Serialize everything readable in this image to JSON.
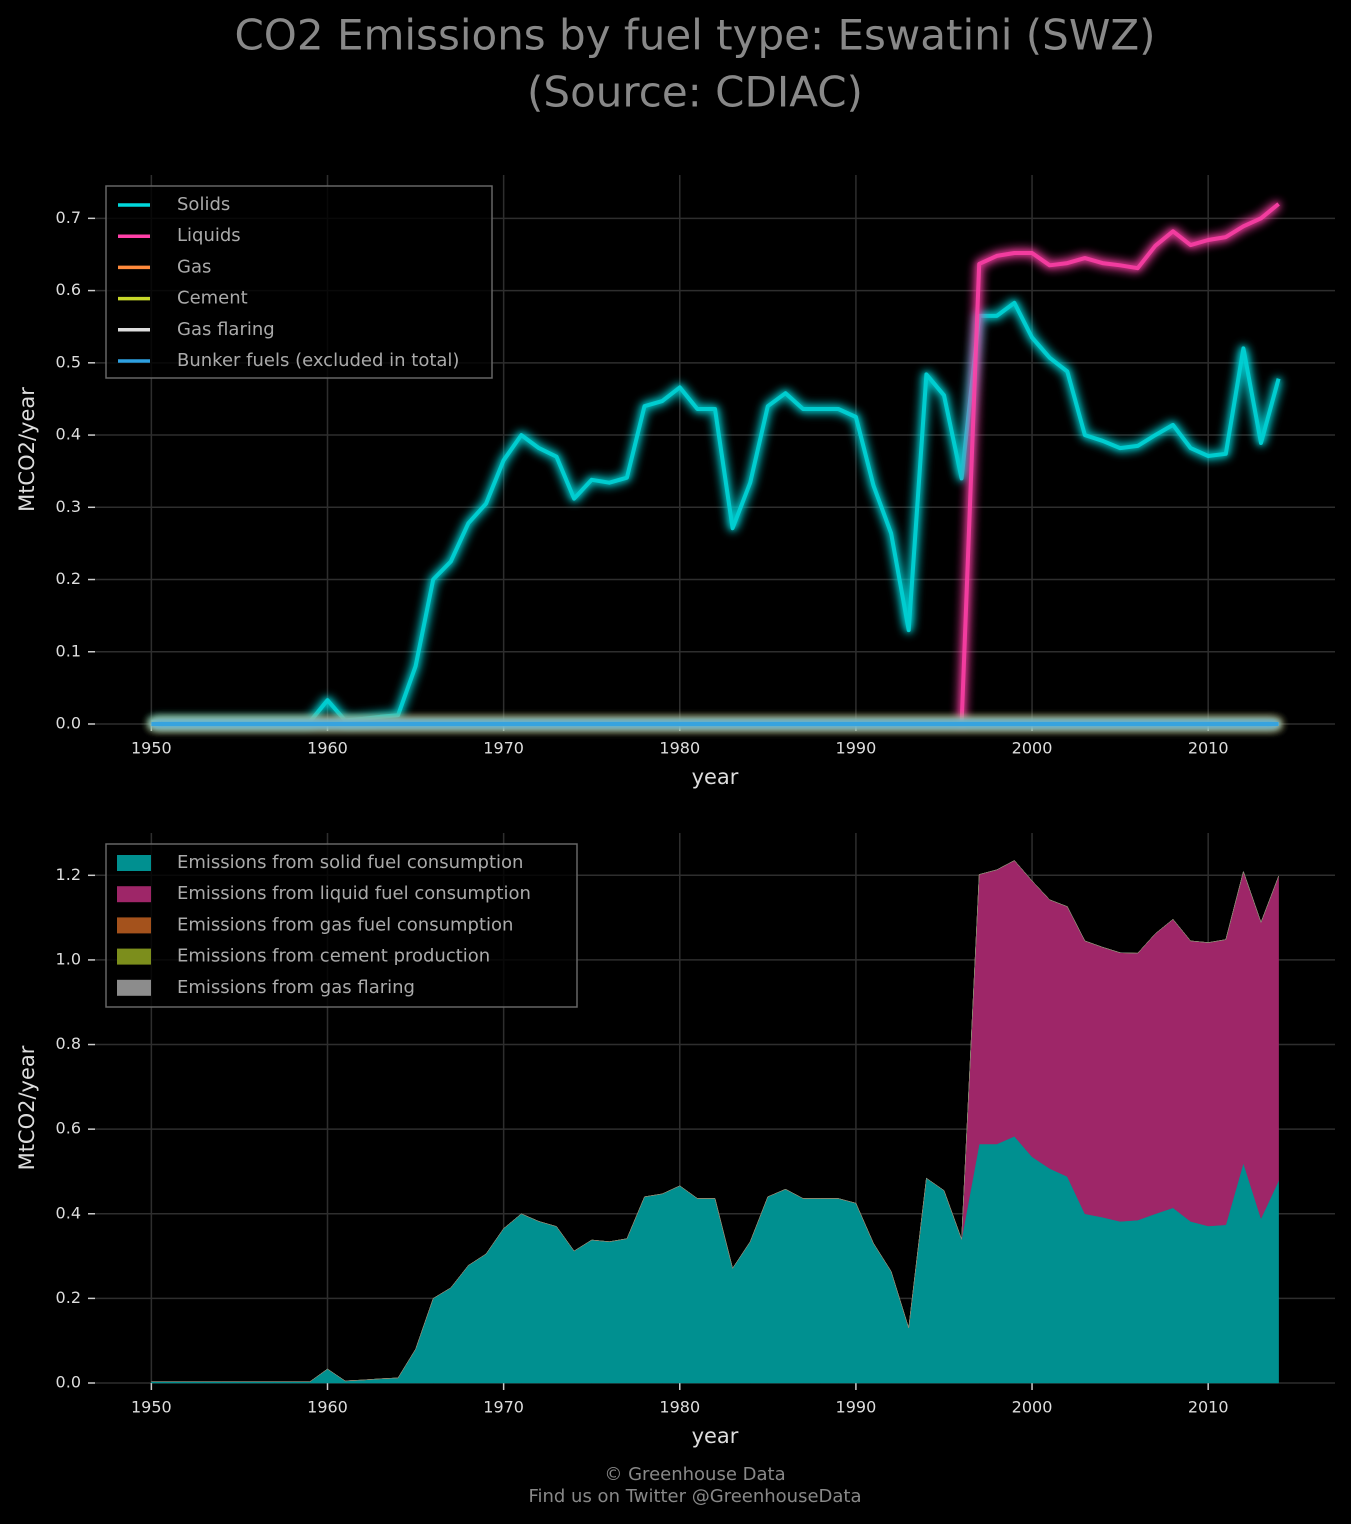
{
  "title": "CO2 Emissions by fuel type: Eswatini (SWZ)",
  "subtitle": "(Source: CDIAC)",
  "footer": [
    "© Greenhouse Data",
    "Find us on Twitter @GreenhouseData"
  ],
  "chart_data": [
    {
      "type": "line",
      "xlabel": "year",
      "ylabel": "MtCO2/year",
      "grid": true,
      "legend": "upper left",
      "x": [
        1950,
        1951,
        1952,
        1953,
        1954,
        1955,
        1956,
        1957,
        1958,
        1959,
        1960,
        1961,
        1962,
        1963,
        1964,
        1965,
        1966,
        1967,
        1968,
        1969,
        1970,
        1971,
        1972,
        1973,
        1974,
        1975,
        1976,
        1977,
        1978,
        1979,
        1980,
        1981,
        1982,
        1983,
        1984,
        1985,
        1986,
        1987,
        1988,
        1989,
        1990,
        1991,
        1992,
        1993,
        1994,
        1995,
        1996,
        1997,
        1998,
        1999,
        2000,
        2001,
        2002,
        2003,
        2004,
        2005,
        2006,
        2007,
        2008,
        2009,
        2010,
        2011,
        2012,
        2013,
        2014
      ],
      "xlim": [
        1946.8,
        2017.2
      ],
      "xticks": [
        1950,
        1960,
        1970,
        1980,
        1990,
        2000,
        2010
      ],
      "ylim": [
        0,
        0.76
      ],
      "yticks": [
        {
          "value": 0,
          "label": "0.0"
        },
        0.1,
        0.2,
        0.3,
        0.4,
        0.5,
        0.6,
        0.7
      ],
      "series": [
        {
          "name": "Solids",
          "color": "#00d8dc",
          "values": [
            0.003,
            0.003,
            0.003,
            0.003,
            0.003,
            0.003,
            0.003,
            0.003,
            0.003,
            0.003,
            0.033,
            0.005,
            0.007,
            0.01,
            0.012,
            0.08,
            0.2,
            0.225,
            0.278,
            0.305,
            0.365,
            0.4,
            0.382,
            0.37,
            0.312,
            0.338,
            0.334,
            0.341,
            0.44,
            0.447,
            0.466,
            0.436,
            0.436,
            0.271,
            0.334,
            0.44,
            0.458,
            0.436,
            0.436,
            0.436,
            0.425,
            0.33,
            0.264,
            0.13,
            0.484,
            0.455,
            0.34,
            0.565,
            0.565,
            0.583,
            0.535,
            0.507,
            0.488,
            0.4,
            0.392,
            0.382,
            0.385,
            0.4,
            0.414,
            0.382,
            0.371,
            0.374,
            0.52,
            0.389,
            0.478
          ]
        },
        {
          "name": "Liquids",
          "color": "#ff40a8",
          "values": [
            null,
            null,
            null,
            null,
            null,
            null,
            null,
            null,
            null,
            null,
            null,
            null,
            null,
            null,
            null,
            null,
            null,
            null,
            null,
            null,
            null,
            null,
            null,
            null,
            null,
            null,
            null,
            null,
            null,
            null,
            null,
            null,
            null,
            null,
            null,
            null,
            null,
            null,
            null,
            null,
            null,
            null,
            null,
            null,
            null,
            null,
            0,
            0.637,
            0.648,
            0.652,
            0.652,
            0.635,
            0.638,
            0.645,
            0.638,
            0.635,
            0.631,
            0.662,
            0.682,
            0.663,
            0.67,
            0.674,
            0.689,
            0.7,
            0.72
          ]
        },
        {
          "name": "Gas",
          "color": "#ff8a3c",
          "values": [
            0,
            0,
            0,
            0,
            0,
            0,
            0,
            0,
            0,
            0,
            0,
            0,
            0,
            0,
            0,
            0,
            0,
            0,
            0,
            0,
            0,
            0,
            0,
            0,
            0,
            0,
            0,
            0,
            0,
            0,
            0,
            0,
            0,
            0,
            0,
            0,
            0,
            0,
            0,
            0,
            0,
            0,
            0,
            0,
            0,
            0,
            0,
            0,
            0,
            0,
            0,
            0,
            0,
            0,
            0,
            0,
            0,
            0,
            0,
            0,
            0,
            0,
            0,
            0,
            0
          ]
        },
        {
          "name": "Cement",
          "color": "#c8d82a",
          "values": [
            0,
            0,
            0,
            0,
            0,
            0,
            0,
            0,
            0,
            0,
            0,
            0,
            0,
            0,
            0,
            0,
            0,
            0,
            0,
            0,
            0,
            0,
            0,
            0,
            0,
            0,
            0,
            0,
            0,
            0,
            0,
            0,
            0,
            0,
            0,
            0,
            0,
            0,
            0,
            0,
            0,
            0,
            0,
            0,
            0,
            0,
            0,
            0,
            0,
            0,
            0,
            0,
            0,
            0,
            0,
            0,
            0,
            0,
            0,
            0,
            0,
            0,
            0,
            0,
            0
          ]
        },
        {
          "name": "Gas flaring",
          "color": "#dddddd",
          "values": [
            0,
            0,
            0,
            0,
            0,
            0,
            0,
            0,
            0,
            0,
            0,
            0,
            0,
            0,
            0,
            0,
            0,
            0,
            0,
            0,
            0,
            0,
            0,
            0,
            0,
            0,
            0,
            0,
            0,
            0,
            0,
            0,
            0,
            0,
            0,
            0,
            0,
            0,
            0,
            0,
            0,
            0,
            0,
            0,
            0,
            0,
            0,
            0,
            0,
            0,
            0,
            0,
            0,
            0,
            0,
            0,
            0,
            0,
            0,
            0,
            0,
            0,
            0,
            0,
            0
          ]
        },
        {
          "name": "Bunker fuels (excluded in total)",
          "color": "#2ea0e0",
          "values": [
            0,
            0,
            0,
            0,
            0,
            0,
            0,
            0,
            0,
            0,
            0,
            0,
            0,
            0,
            0,
            0,
            0,
            0,
            0,
            0,
            0,
            0,
            0,
            0,
            0,
            0,
            0,
            0,
            0,
            0,
            0,
            0,
            0,
            0,
            0,
            0,
            0,
            0,
            0,
            0,
            0,
            0,
            0,
            0,
            0,
            0,
            0,
            0,
            0,
            0,
            0,
            0,
            0,
            0,
            0,
            0,
            0,
            0,
            0,
            0,
            0,
            0,
            0,
            0,
            0
          ]
        }
      ]
    },
    {
      "type": "stacked_area",
      "xlabel": "year",
      "ylabel": "MtCO2/year",
      "grid": true,
      "legend": "upper left",
      "x": [
        1950,
        1951,
        1952,
        1953,
        1954,
        1955,
        1956,
        1957,
        1958,
        1959,
        1960,
        1961,
        1962,
        1963,
        1964,
        1965,
        1966,
        1967,
        1968,
        1969,
        1970,
        1971,
        1972,
        1973,
        1974,
        1975,
        1976,
        1977,
        1978,
        1979,
        1980,
        1981,
        1982,
        1983,
        1984,
        1985,
        1986,
        1987,
        1988,
        1989,
        1990,
        1991,
        1992,
        1993,
        1994,
        1995,
        1996,
        1997,
        1998,
        1999,
        2000,
        2001,
        2002,
        2003,
        2004,
        2005,
        2006,
        2007,
        2008,
        2009,
        2010,
        2011,
        2012,
        2013,
        2014
      ],
      "xlim": [
        1946.8,
        2017.2
      ],
      "xticks": [
        1950,
        1960,
        1970,
        1980,
        1990,
        2000,
        2010
      ],
      "ylim": [
        0,
        1.3
      ],
      "yticks": [
        {
          "value": 0,
          "label": "0.0"
        },
        0.2,
        0.4,
        0.6,
        0.8,
        {
          "value": 1,
          "label": "1.0"
        },
        1.2
      ],
      "series": [
        {
          "name": "Emissions from solid fuel consumption",
          "color": "#009090",
          "values": [
            0.003,
            0.003,
            0.003,
            0.003,
            0.003,
            0.003,
            0.003,
            0.003,
            0.003,
            0.003,
            0.033,
            0.005,
            0.007,
            0.01,
            0.012,
            0.08,
            0.2,
            0.225,
            0.278,
            0.305,
            0.365,
            0.4,
            0.382,
            0.37,
            0.312,
            0.338,
            0.334,
            0.341,
            0.44,
            0.447,
            0.466,
            0.436,
            0.436,
            0.271,
            0.334,
            0.44,
            0.458,
            0.436,
            0.436,
            0.436,
            0.425,
            0.33,
            0.264,
            0.13,
            0.484,
            0.455,
            0.34,
            0.565,
            0.565,
            0.583,
            0.535,
            0.507,
            0.488,
            0.4,
            0.392,
            0.382,
            0.385,
            0.4,
            0.414,
            0.382,
            0.371,
            0.374,
            0.52,
            0.389,
            0.478
          ]
        },
        {
          "name": "Emissions from liquid fuel consumption",
          "color": "#9e2668",
          "values": [
            null,
            null,
            null,
            null,
            null,
            null,
            null,
            null,
            null,
            null,
            null,
            null,
            null,
            null,
            null,
            null,
            null,
            null,
            null,
            null,
            null,
            null,
            null,
            null,
            null,
            null,
            null,
            null,
            null,
            null,
            null,
            null,
            null,
            null,
            null,
            null,
            null,
            null,
            null,
            null,
            null,
            null,
            null,
            null,
            null,
            null,
            0,
            0.637,
            0.648,
            0.652,
            0.652,
            0.635,
            0.638,
            0.645,
            0.638,
            0.635,
            0.631,
            0.662,
            0.682,
            0.663,
            0.67,
            0.674,
            0.689,
            0.7,
            0.72
          ]
        },
        {
          "name": "Emissions from gas fuel consumption",
          "color": "#a4521c",
          "values": [
            0,
            0,
            0,
            0,
            0,
            0,
            0,
            0,
            0,
            0,
            0,
            0,
            0,
            0,
            0,
            0,
            0,
            0,
            0,
            0,
            0,
            0,
            0,
            0,
            0,
            0,
            0,
            0,
            0,
            0,
            0,
            0,
            0,
            0,
            0,
            0,
            0,
            0,
            0,
            0,
            0,
            0,
            0,
            0,
            0,
            0,
            0,
            0,
            0,
            0,
            0,
            0,
            0,
            0,
            0,
            0,
            0,
            0,
            0,
            0,
            0,
            0,
            0,
            0,
            0
          ]
        },
        {
          "name": "Emissions from cement production",
          "color": "#7c8e1c",
          "values": [
            0,
            0,
            0,
            0,
            0,
            0,
            0,
            0,
            0,
            0,
            0,
            0,
            0,
            0,
            0,
            0,
            0,
            0,
            0,
            0,
            0,
            0,
            0,
            0,
            0,
            0,
            0,
            0,
            0,
            0,
            0,
            0,
            0,
            0,
            0,
            0,
            0,
            0,
            0,
            0,
            0,
            0,
            0,
            0,
            0,
            0,
            0,
            0,
            0,
            0,
            0,
            0,
            0,
            0,
            0,
            0,
            0,
            0,
            0,
            0,
            0,
            0,
            0,
            0,
            0
          ]
        },
        {
          "name": "Emissions from gas flaring",
          "color": "#8c8c8c",
          "values": [
            0,
            0,
            0,
            0,
            0,
            0,
            0,
            0,
            0,
            0,
            0,
            0,
            0,
            0,
            0,
            0,
            0,
            0,
            0,
            0,
            0,
            0,
            0,
            0,
            0,
            0,
            0,
            0,
            0,
            0,
            0,
            0,
            0,
            0,
            0,
            0,
            0,
            0,
            0,
            0,
            0,
            0,
            0,
            0,
            0,
            0,
            0,
            0,
            0,
            0,
            0,
            0,
            0,
            0,
            0,
            0,
            0,
            0,
            0,
            0,
            0,
            0,
            0,
            0,
            0
          ]
        }
      ]
    }
  ]
}
